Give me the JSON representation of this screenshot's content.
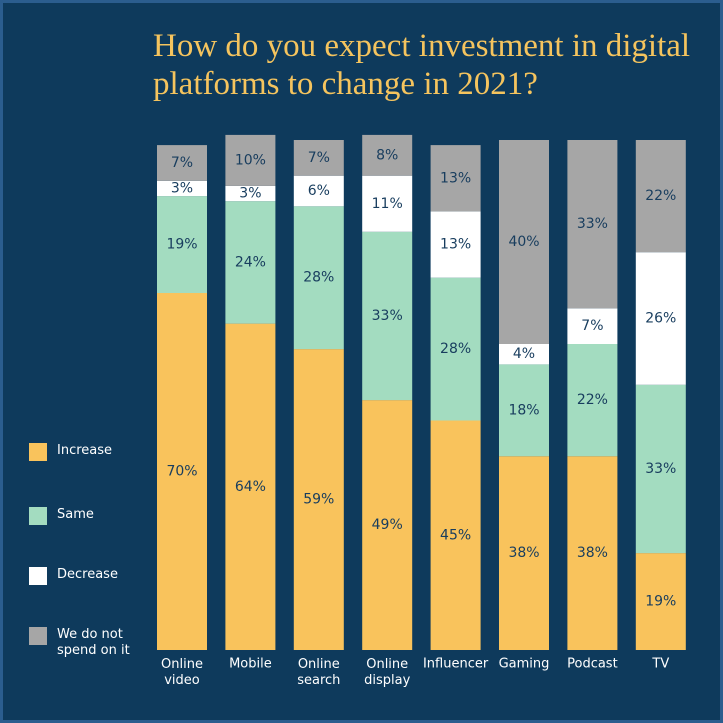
{
  "chart_data": {
    "type": "stacked_bar",
    "title": "How do you expect investment in digital platforms to change in 2021?",
    "categories": [
      "Online video",
      "Mobile",
      "Online search",
      "Online display",
      "Influencer",
      "Gaming",
      "Podcast",
      "TV"
    ],
    "series": [
      {
        "name": "Increase",
        "color": "#f9c35c",
        "values": [
          70,
          64,
          59,
          49,
          45,
          38,
          38,
          19
        ],
        "value_labels": [
          "70%",
          "64%",
          "59%",
          "49%",
          "45%",
          "38%",
          "38%",
          "19%"
        ]
      },
      {
        "name": "Same",
        "color": "#a3dcc0",
        "values": [
          19,
          24,
          28,
          33,
          28,
          18,
          22,
          33
        ],
        "value_labels": [
          "19%",
          "24%",
          "28%",
          "33%",
          "28%",
          "18%",
          "22%",
          "33%"
        ]
      },
      {
        "name": "Decrease",
        "color": "#ffffff",
        "values": [
          3,
          3,
          6,
          11,
          13,
          4,
          7,
          26
        ],
        "value_labels": [
          "3%",
          "3%",
          "6%",
          "11%",
          "13%",
          "4%",
          "7%",
          "26%"
        ]
      },
      {
        "name": "We do not spend on it",
        "color": "#a6a6a6",
        "values": [
          7,
          10,
          7,
          8,
          13,
          40,
          33,
          22
        ],
        "value_labels": [
          "7%",
          "10%",
          "7%",
          "8%",
          "13%",
          "40%",
          "33%",
          "22%"
        ]
      }
    ],
    "ylim": [
      0,
      100
    ],
    "legend": "left"
  }
}
